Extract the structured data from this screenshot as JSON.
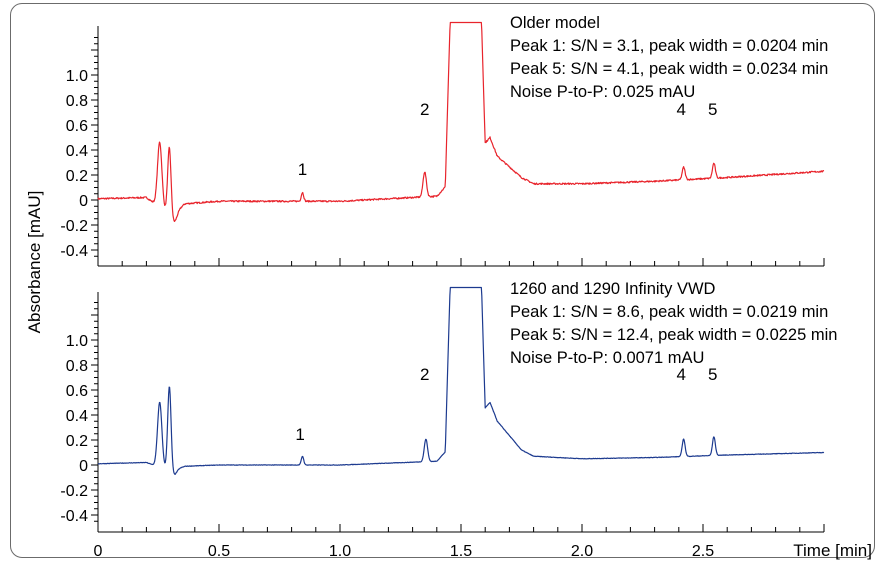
{
  "chart_data": {
    "type": "line",
    "ylabel": "Absorbance [mAU]",
    "xlabel": "Time [min]",
    "xlim": [
      0,
      3.0
    ],
    "x_ticks": [
      "0",
      "0.5",
      "1.0",
      "1.5",
      "2.0",
      "2.5"
    ],
    "y_ticks": [
      "-0.4",
      "-0.2",
      "0",
      "0.2",
      "0.4",
      "0.6",
      "0.8",
      "1.0"
    ],
    "panels": [
      {
        "ylim": [
          -0.5,
          1.45
        ],
        "color": "#e8242c",
        "annotation": [
          "Older model",
          "Peak 1: S/N = 3.1, peak width = 0.0204 min",
          "Peak 5: S/N = 4.1, peak width = 0.0234 min",
          "Noise P-to-P: 0.025 mAU"
        ],
        "peak_labels": [
          {
            "label": "1",
            "x": 0.845,
            "y": 0.2
          },
          {
            "label": "2",
            "x": 1.35,
            "y": 0.68
          },
          {
            "label": "4",
            "x": 2.41,
            "y": 0.68
          },
          {
            "label": "5",
            "x": 2.54,
            "y": 0.68
          }
        ],
        "trace": {
          "noise": 0.006,
          "plateau": 1.42,
          "baseline": [
            [
              0,
              0.01
            ],
            [
              0.2,
              0.02
            ],
            [
              0.3,
              -0.12
            ],
            [
              0.36,
              -0.03
            ],
            [
              0.5,
              -0.01
            ],
            [
              1.0,
              -0.01
            ],
            [
              1.4,
              0.03
            ],
            [
              1.62,
              0.5
            ],
            [
              1.65,
              0.35
            ],
            [
              1.75,
              0.18
            ],
            [
              1.8,
              0.13
            ],
            [
              2.0,
              0.13
            ],
            [
              2.3,
              0.15
            ],
            [
              2.6,
              0.18
            ],
            [
              3.0,
              0.23
            ]
          ],
          "peaks": [
            [
              0.255,
              0.52,
              0.009
            ],
            [
              0.295,
              0.55,
              0.007
            ],
            [
              0.845,
              0.07,
              0.005
            ],
            [
              1.35,
              0.2,
              0.007
            ],
            [
              2.42,
              0.1,
              0.006
            ],
            [
              2.545,
              0.12,
              0.006
            ]
          ],
          "dips": [
            [
              0.315,
              -0.08,
              0.012
            ]
          ]
        }
      },
      {
        "ylim": [
          -0.5,
          1.45
        ],
        "color": "#1c3a8f",
        "annotation": [
          "1260 and 1290 Infinity VWD",
          "Peak 1: S/N = 8.6, peak width = 0.0219 min",
          "Peak 5: S/N = 12.4, peak width = 0.0225 min",
          "Noise P-to-P: 0.0071 mAU"
        ],
        "peak_labels": [
          {
            "label": "1",
            "x": 0.835,
            "y": 0.2
          },
          {
            "label": "2",
            "x": 1.35,
            "y": 0.68
          },
          {
            "label": "4",
            "x": 2.41,
            "y": 0.68
          },
          {
            "label": "5",
            "x": 2.54,
            "y": 0.68
          }
        ],
        "trace": {
          "noise": 0.002,
          "plateau": 1.42,
          "baseline": [
            [
              0,
              0.01
            ],
            [
              0.2,
              0.02
            ],
            [
              0.3,
              -0.05
            ],
            [
              0.36,
              -0.01
            ],
            [
              0.5,
              0.0
            ],
            [
              1.0,
              0.0
            ],
            [
              1.4,
              0.03
            ],
            [
              1.62,
              0.5
            ],
            [
              1.65,
              0.35
            ],
            [
              1.75,
              0.12
            ],
            [
              1.8,
              0.07
            ],
            [
              2.0,
              0.05
            ],
            [
              2.3,
              0.06
            ],
            [
              2.6,
              0.08
            ],
            [
              3.0,
              0.1
            ]
          ],
          "peaks": [
            [
              0.255,
              0.52,
              0.009
            ],
            [
              0.295,
              0.68,
              0.007
            ],
            [
              0.845,
              0.07,
              0.005
            ],
            [
              1.355,
              0.18,
              0.007
            ],
            [
              2.42,
              0.14,
              0.006
            ],
            [
              2.545,
              0.15,
              0.006
            ]
          ],
          "dips": [
            [
              0.315,
              -0.04,
              0.01
            ]
          ]
        }
      }
    ]
  }
}
